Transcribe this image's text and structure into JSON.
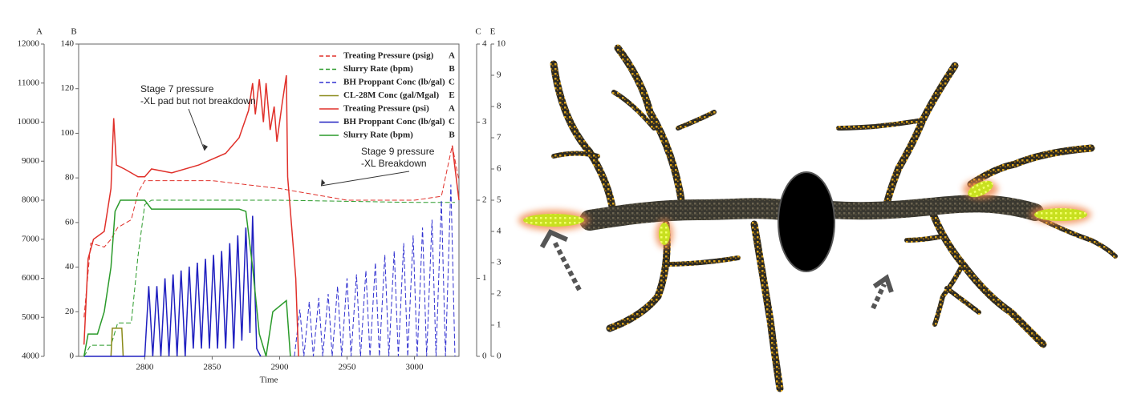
{
  "chart_data": {
    "type": "line",
    "x_label": "Time",
    "xlim": [
      2751,
      3033
    ],
    "xticks": [
      2800,
      2850,
      2900,
      2950,
      3000
    ],
    "axes": [
      {
        "label": "A",
        "side": "left",
        "lim": [
          4000,
          12000
        ],
        "ticks": [
          4000,
          5000,
          6000,
          7000,
          8000,
          9000,
          10000,
          11000,
          12000
        ]
      },
      {
        "label": "B",
        "side": "left",
        "lim": [
          0,
          140
        ],
        "ticks": [
          0,
          20,
          40,
          60,
          80,
          100,
          120,
          140
        ]
      },
      {
        "label": "C",
        "side": "right",
        "lim": [
          0,
          4
        ],
        "ticks": [
          0,
          1,
          2,
          3,
          4
        ]
      },
      {
        "label": "E",
        "side": "right",
        "lim": [
          0,
          10
        ],
        "ticks": [
          0,
          1,
          2,
          3,
          4,
          5,
          6,
          7,
          8,
          9,
          10
        ]
      }
    ],
    "series": [
      {
        "name": "Treating Pressure (psig)",
        "axis": "A",
        "color": "#e0302a",
        "dashed": true,
        "x": [
          2755,
          2760,
          2770,
          2775,
          2780,
          2790,
          2795,
          2800,
          2810,
          2850,
          2900,
          2950,
          2975,
          3000,
          3020,
          3028,
          3033
        ],
        "values": [
          5000,
          6900,
          6800,
          7000,
          7300,
          7500,
          8200,
          8500,
          8500,
          8500,
          8300,
          8000,
          8000,
          8000,
          8100,
          9400,
          8500
        ]
      },
      {
        "name": "Slurry Rate (bpm)",
        "axis": "B",
        "color": "#2a9a2a",
        "dashed": true,
        "x": [
          2755,
          2760,
          2775,
          2780,
          2790,
          2795,
          2800,
          2805,
          2900,
          3000,
          3030
        ],
        "values": [
          0,
          5,
          5,
          15,
          15,
          45,
          68,
          70,
          70,
          69,
          69
        ]
      },
      {
        "name": "BH Proppant Conc (lb/gal)",
        "axis": "C",
        "color": "#3030d0",
        "dashed": true,
        "x": [
          2911,
          2915,
          2918,
          2922,
          2925,
          2929,
          2932,
          2936,
          2939,
          2943,
          2946,
          2950,
          2953,
          2957,
          2960,
          2964,
          2967,
          2971,
          2974,
          2978,
          2981,
          2985,
          2988,
          2992,
          2995,
          2999,
          3002,
          3006,
          3009,
          3013,
          3016,
          3020,
          3023,
          3027,
          3030
        ],
        "values": [
          0,
          0.6,
          0,
          0.7,
          0,
          0.75,
          0,
          0.8,
          0,
          0.9,
          0,
          1.0,
          0,
          1.05,
          0,
          1.1,
          0,
          1.2,
          0,
          1.3,
          0,
          1.35,
          0,
          1.45,
          0,
          1.55,
          0,
          1.65,
          0,
          1.75,
          0,
          2.0,
          0,
          2.2,
          0
        ]
      },
      {
        "name": "CL-28M Conc (gal/Mgal)",
        "axis": "E",
        "color": "#8a8a1a",
        "dashed": false,
        "x": [
          2775,
          2776,
          2783,
          2784
        ],
        "values": [
          0,
          0.9,
          0.9,
          0
        ]
      },
      {
        "name": "Treating Pressure (psi)",
        "axis": "A",
        "color": "#e0302a",
        "dashed": false,
        "x": [
          2755,
          2758,
          2762,
          2770,
          2775,
          2777,
          2779,
          2785,
          2795,
          2800,
          2805,
          2820,
          2840,
          2860,
          2870,
          2877,
          2880,
          2882,
          2885,
          2888,
          2890,
          2893,
          2896,
          2898,
          2902,
          2905,
          2906,
          2912,
          2914,
          3024,
          3028,
          3033
        ],
        "values": [
          4300,
          6500,
          7000,
          7200,
          8300,
          10100,
          8900,
          8800,
          8600,
          8600,
          8800,
          8700,
          8900,
          9200,
          9600,
          10300,
          11000,
          10200,
          11100,
          10000,
          11000,
          9800,
          10400,
          9500,
          10500,
          11200,
          8600,
          6000,
          4000,
          null,
          9400,
          8000
        ]
      },
      {
        "name": "BH Proppant Conc (lb/gal)",
        "axis": "C",
        "color": "#2020c0",
        "dashed": false,
        "x": [
          2755,
          2800,
          2803,
          2806,
          2809,
          2812,
          2815,
          2818,
          2821,
          2824,
          2827,
          2830,
          2833,
          2836,
          2839,
          2842,
          2845,
          2848,
          2851,
          2854,
          2857,
          2860,
          2863,
          2866,
          2869,
          2872,
          2875,
          2878,
          2880,
          2883,
          2886
        ],
        "values": [
          0,
          0,
          0.9,
          0,
          0.9,
          0,
          1.0,
          0,
          1.05,
          0,
          1.1,
          0,
          1.15,
          0.1,
          1.2,
          0.1,
          1.25,
          0.1,
          1.3,
          0.1,
          1.35,
          0.1,
          1.45,
          0.1,
          1.55,
          0.2,
          1.65,
          0.3,
          1.8,
          0.1,
          0
        ]
      },
      {
        "name": "Slurry Rate (bpm)",
        "axis": "B",
        "color": "#2a9a2a",
        "dashed": false,
        "x": [
          2755,
          2758,
          2765,
          2770,
          2775,
          2778,
          2782,
          2800,
          2805,
          2850,
          2870,
          2875,
          2880,
          2885,
          2890,
          2895,
          2905,
          2908
        ],
        "values": [
          0,
          10,
          10,
          20,
          40,
          65,
          70,
          70,
          66,
          66,
          66,
          65,
          40,
          10,
          0,
          20,
          25,
          0
        ]
      }
    ],
    "annotations": [
      {
        "lines": [
          "Stage 7 pressure",
          "-XL pad but not breakdown"
        ]
      },
      {
        "lines": [
          "Stage 9 pressure",
          "-XL Breakdown"
        ]
      }
    ]
  }
}
